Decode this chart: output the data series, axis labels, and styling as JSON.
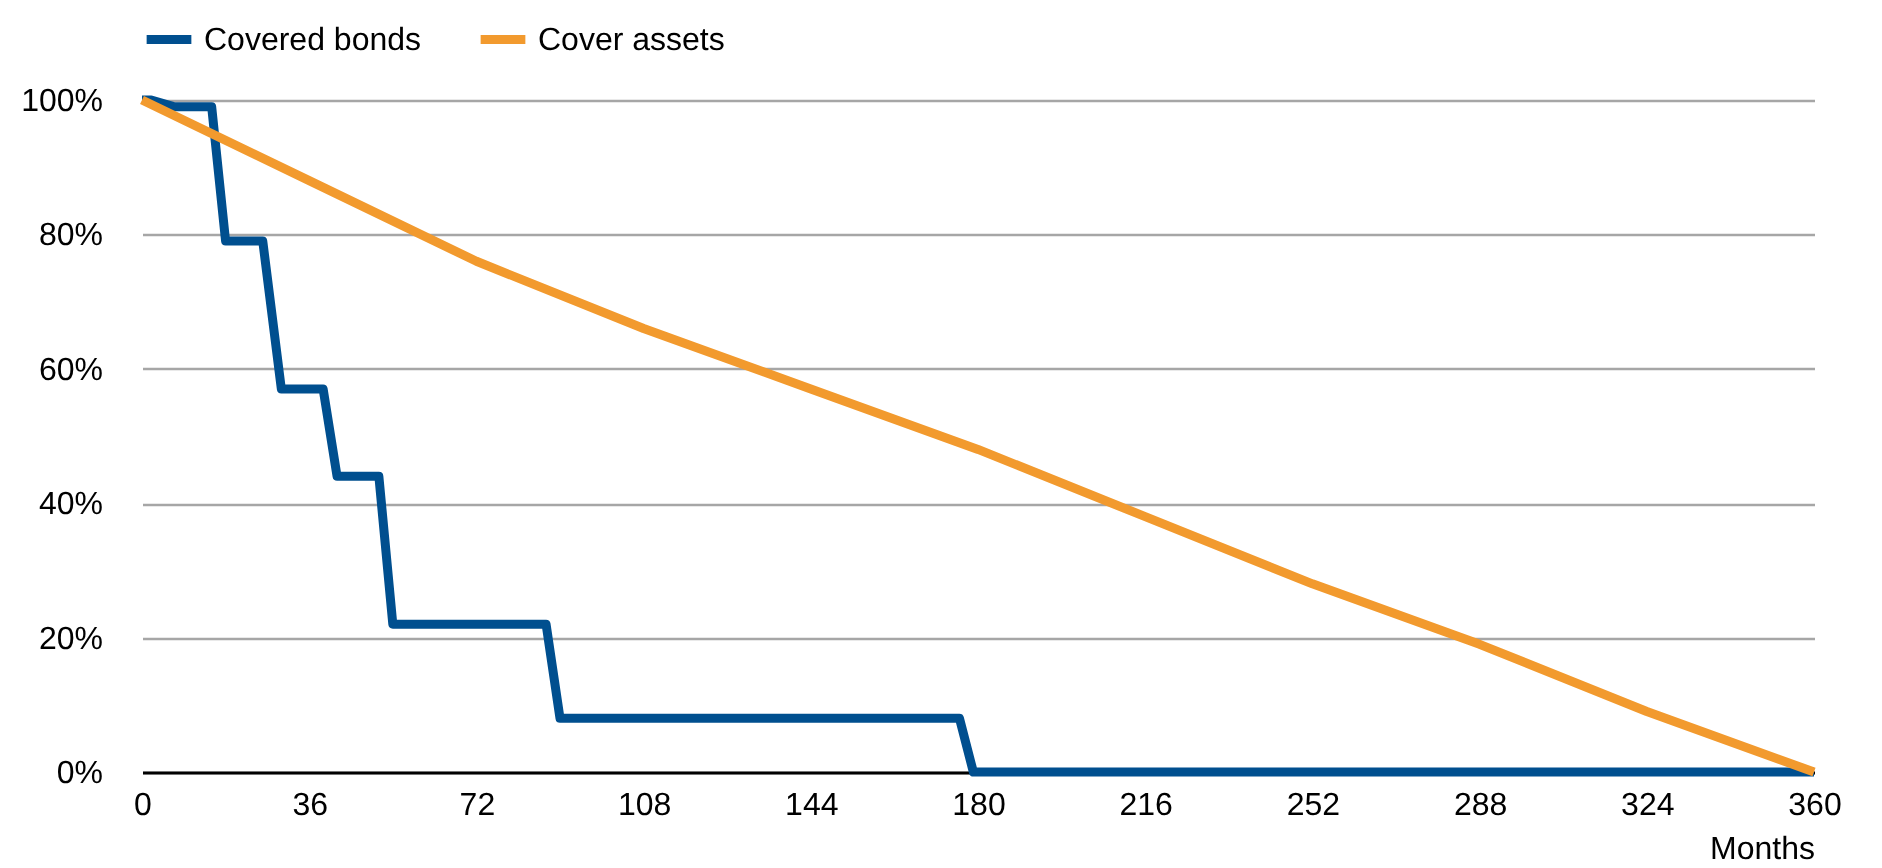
{
  "chart_data": {
    "type": "line",
    "xlabel": "Months",
    "legend": "top",
    "grid": "y",
    "marker": "none",
    "line_style": "solid",
    "xlim": [
      0,
      360
    ],
    "xticks": [
      0,
      36,
      72,
      108,
      144,
      180,
      216,
      252,
      288,
      324,
      360
    ],
    "ylim": [
      0,
      100
    ],
    "yticks": [
      {
        "value": 0,
        "label": "0%"
      },
      {
        "value": 20,
        "label": "20%"
      },
      {
        "value": 40,
        "label": "40%"
      },
      {
        "value": 60,
        "label": "60%"
      },
      {
        "value": 80,
        "label": "80%"
      },
      {
        "value": 100,
        "label": "100%"
      }
    ],
    "series": [
      {
        "name": "Covered bonds",
        "color": "#004f8f",
        "x": [
          0,
          2,
          7,
          15,
          18,
          26,
          30,
          39,
          42,
          51,
          54,
          87,
          90,
          176,
          179,
          360
        ],
        "values": [
          100,
          100,
          99,
          99,
          79,
          79,
          57,
          57,
          44,
          44,
          22,
          22,
          8,
          8,
          0,
          0
        ]
      },
      {
        "name": "Cover assets",
        "color": "#f29a2e",
        "x": [
          0,
          36,
          72,
          108,
          144,
          180,
          216,
          252,
          288,
          324,
          360
        ],
        "values": [
          100,
          88,
          76,
          66,
          57,
          48,
          38,
          28,
          19,
          9,
          0
        ]
      }
    ]
  }
}
